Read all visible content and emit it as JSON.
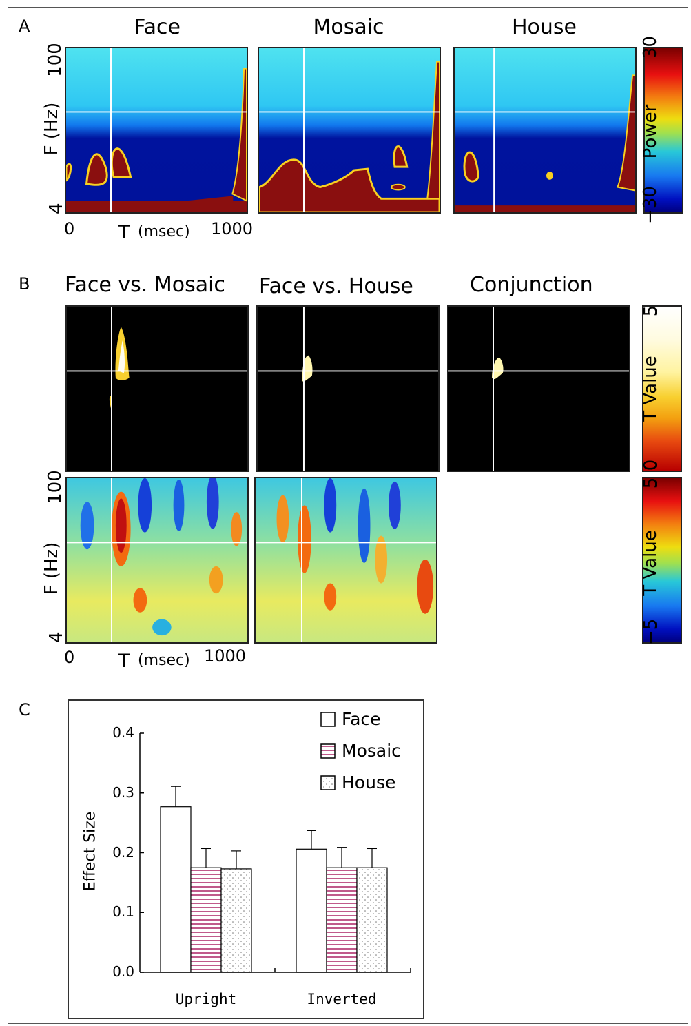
{
  "panel_a": {
    "letter": "A",
    "titles": [
      "Face",
      "Mosaic",
      "House"
    ],
    "y_label": "F (Hz)",
    "y_top": "100",
    "y_bottom": "4",
    "x_label": "T",
    "x_unit": "(msec)",
    "x_start": "0",
    "x_end": "1000",
    "colorbar": {
      "label": "Power",
      "max": "30",
      "min": "−30"
    }
  },
  "panel_b": {
    "letter": "B",
    "titles": [
      "Face vs. Mosaic",
      "Face vs. House",
      "Conjunction"
    ],
    "y_label": "F (Hz)",
    "y_top": "100",
    "y_bottom": "4",
    "x_label": "T",
    "x_unit": "(msec)",
    "x_start": "0",
    "x_end": "1000",
    "colorbar_top": {
      "label": "T Value",
      "max": "5",
      "min": "0"
    },
    "colorbar_bottom": {
      "label": "T Value",
      "max": "5",
      "min": "−5"
    }
  },
  "panel_c": {
    "letter": "C"
  },
  "chart_data": {
    "type": "bar",
    "ylabel": "Effect Size",
    "xlabel": "",
    "ylim": [
      0,
      0.4
    ],
    "yticks": [
      "0.0",
      "0.1",
      "0.2",
      "0.3",
      "0.4"
    ],
    "categories": [
      "Upright",
      "Inverted"
    ],
    "series": [
      {
        "name": "Face",
        "pattern": "white",
        "values": [
          0.277,
          0.206
        ],
        "errors": [
          0.034,
          0.031
        ]
      },
      {
        "name": "Mosaic",
        "pattern": "hlines",
        "values": [
          0.175,
          0.175
        ],
        "errors": [
          0.032,
          0.034
        ]
      },
      {
        "name": "House",
        "pattern": "dots",
        "values": [
          0.173,
          0.175
        ],
        "errors": [
          0.03,
          0.032
        ]
      }
    ],
    "legend_position": "top-right",
    "colors": {
      "bar_edge": "#000000",
      "hatch": "#b0306e",
      "dots": "#777777"
    }
  }
}
